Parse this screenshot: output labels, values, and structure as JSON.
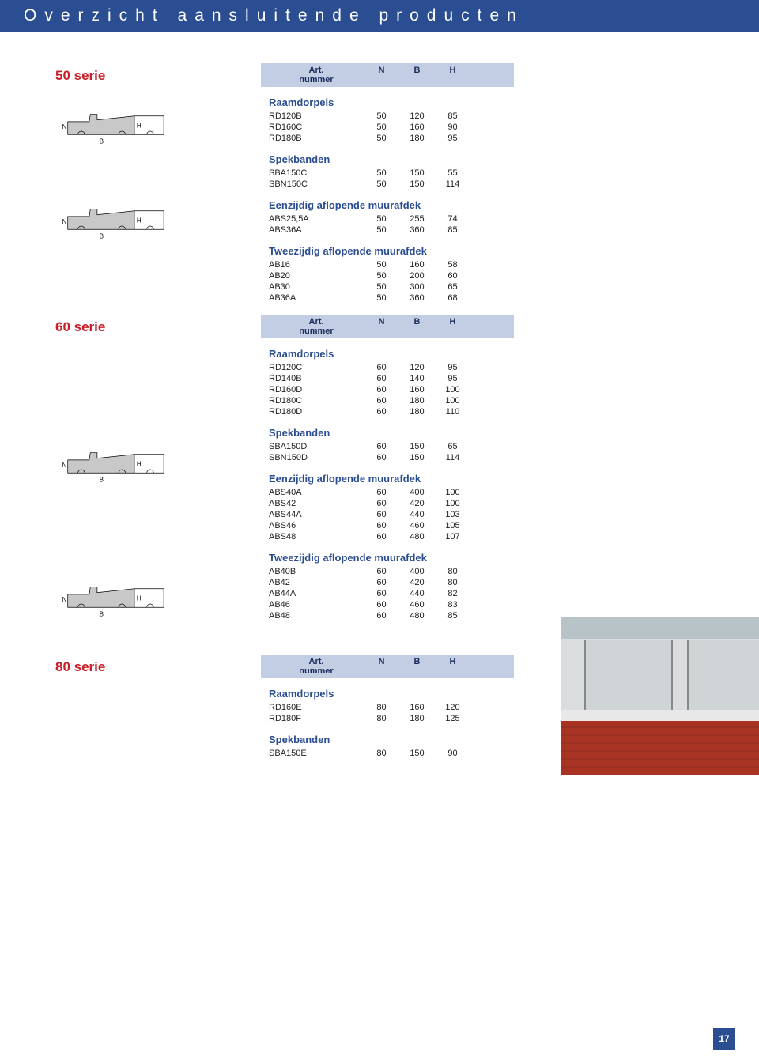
{
  "header": {
    "title": "Overzicht aansluitende producten"
  },
  "page_number": "17",
  "colors": {
    "header_bg": "#2b4d91",
    "header_text": "#ffffff",
    "serie_label": "#c92029",
    "section_header_bg": "#c3cde4",
    "section_header_text": "#1a2d5a",
    "group_title": "#2b4d91",
    "diagram_fill": "#c8c8c8",
    "diagram_stroke": "#000000"
  },
  "diagrams": {
    "labels": {
      "N": "N",
      "H": "H",
      "B": "B"
    }
  },
  "series": [
    {
      "label": "50 serie",
      "diagrams": 2,
      "header": {
        "art_line1": "Art.",
        "art_line2": "nummer",
        "cols": [
          "N",
          "B",
          "H"
        ]
      },
      "groups": [
        {
          "title": "Raamdorpels",
          "rows": [
            {
              "art": "RD120B",
              "n": "50",
              "b": "120",
              "h": "85"
            },
            {
              "art": "RD160C",
              "n": "50",
              "b": "160",
              "h": "90"
            },
            {
              "art": "RD180B",
              "n": "50",
              "b": "180",
              "h": "95"
            }
          ]
        },
        {
          "title": "Spekbanden",
          "rows": [
            {
              "art": "SBA150C",
              "n": "50",
              "b": "150",
              "h": "55"
            },
            {
              "art": "SBN150C",
              "n": "50",
              "b": "150",
              "h": "114"
            }
          ]
        },
        {
          "title": "Eenzijdig aflopende muurafdek",
          "rows": [
            {
              "art": "ABS25,5A",
              "n": "50",
              "b": "255",
              "h": "74"
            },
            {
              "art": "ABS36A",
              "n": "50",
              "b": "360",
              "h": "85"
            }
          ]
        },
        {
          "title": "Tweezijdig aflopende muurafdek",
          "rows": [
            {
              "art": "AB16",
              "n": "50",
              "b": "160",
              "h": "58"
            },
            {
              "art": "AB20",
              "n": "50",
              "b": "200",
              "h": "60"
            },
            {
              "art": "AB30",
              "n": "50",
              "b": "300",
              "h": "65"
            },
            {
              "art": "AB36A",
              "n": "50",
              "b": "360",
              "h": "68"
            }
          ]
        }
      ]
    },
    {
      "label": "60 serie",
      "diagrams": 2,
      "header": {
        "art_line1": "Art.",
        "art_line2": "nummer",
        "cols": [
          "N",
          "B",
          "H"
        ]
      },
      "groups": [
        {
          "title": "Raamdorpels",
          "rows": [
            {
              "art": "RD120C",
              "n": "60",
              "b": "120",
              "h": "95"
            },
            {
              "art": "RD140B",
              "n": "60",
              "b": "140",
              "h": "95"
            },
            {
              "art": "RD160D",
              "n": "60",
              "b": "160",
              "h": "100"
            },
            {
              "art": "RD180C",
              "n": "60",
              "b": "180",
              "h": "100"
            },
            {
              "art": "RD180D",
              "n": "60",
              "b": "180",
              "h": "110"
            }
          ]
        },
        {
          "title": "Spekbanden",
          "rows": [
            {
              "art": "SBA150D",
              "n": "60",
              "b": "150",
              "h": "65"
            },
            {
              "art": "SBN150D",
              "n": "60",
              "b": "150",
              "h": "114"
            }
          ]
        },
        {
          "title": "Eenzijdig aflopende muurafdek",
          "rows": [
            {
              "art": "ABS40A",
              "n": "60",
              "b": "400",
              "h": "100"
            },
            {
              "art": "ABS42",
              "n": "60",
              "b": "420",
              "h": "100"
            },
            {
              "art": "ABS44A",
              "n": "60",
              "b": "440",
              "h": "103"
            },
            {
              "art": "ABS46",
              "n": "60",
              "b": "460",
              "h": "105"
            },
            {
              "art": "ABS48",
              "n": "60",
              "b": "480",
              "h": "107"
            }
          ]
        },
        {
          "title": "Tweezijdig aflopende muurafdek",
          "rows": [
            {
              "art": "AB40B",
              "n": "60",
              "b": "400",
              "h": "80"
            },
            {
              "art": "AB42",
              "n": "60",
              "b": "420",
              "h": "80"
            },
            {
              "art": "AB44A",
              "n": "60",
              "b": "440",
              "h": "82"
            },
            {
              "art": "AB46",
              "n": "60",
              "b": "460",
              "h": "83"
            },
            {
              "art": "AB48",
              "n": "60",
              "b": "480",
              "h": "85"
            }
          ]
        }
      ]
    },
    {
      "label": "80 serie",
      "diagrams": 0,
      "header": {
        "art_line1": "Art.",
        "art_line2": "nummer",
        "cols": [
          "N",
          "B",
          "H"
        ]
      },
      "groups": [
        {
          "title": "Raamdorpels",
          "rows": [
            {
              "art": "RD160E",
              "n": "80",
              "b": "160",
              "h": "120"
            },
            {
              "art": "RD180F",
              "n": "80",
              "b": "180",
              "h": "125"
            }
          ]
        },
        {
          "title": "Spekbanden",
          "rows": [
            {
              "art": "SBA150E",
              "n": "80",
              "b": "150",
              "h": "90"
            }
          ]
        }
      ]
    }
  ]
}
